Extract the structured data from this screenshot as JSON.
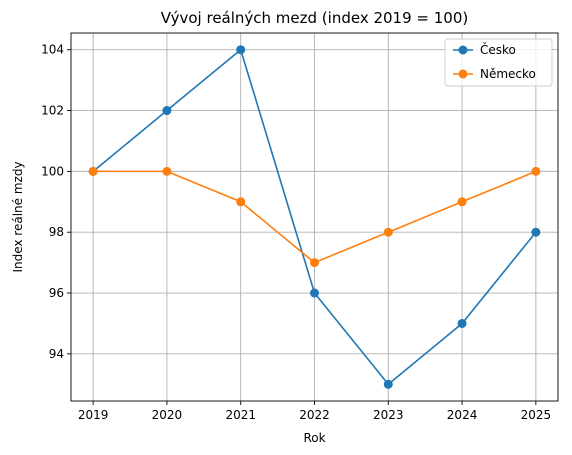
{
  "chart_data": {
    "type": "line",
    "title": "Vývoj reálných mezd (index 2019 = 100)",
    "xlabel": "Rok",
    "ylabel": "Index reálné mzdy",
    "x": [
      2019,
      2020,
      2021,
      2022,
      2023,
      2024,
      2025
    ],
    "x_tick_labels": [
      "2019",
      "2020",
      "2021",
      "2022",
      "2023",
      "2024",
      "2025"
    ],
    "y_ticks": [
      94,
      96,
      98,
      100,
      102,
      104
    ],
    "y_tick_labels": [
      "94",
      "96",
      "98",
      "100",
      "102",
      "104"
    ],
    "xlim": [
      2018.7,
      2025.3
    ],
    "ylim": [
      92.45,
      104.55
    ],
    "grid": true,
    "legend_position": "upper right",
    "series": [
      {
        "name": "Česko",
        "values": [
          100,
          102,
          104,
          96,
          93,
          95,
          98
        ],
        "color": "#1f77b4",
        "marker": "circle"
      },
      {
        "name": "Německo",
        "values": [
          100,
          100,
          99,
          97,
          98,
          99,
          100
        ],
        "color": "#ff7f0e",
        "marker": "circle"
      }
    ]
  }
}
